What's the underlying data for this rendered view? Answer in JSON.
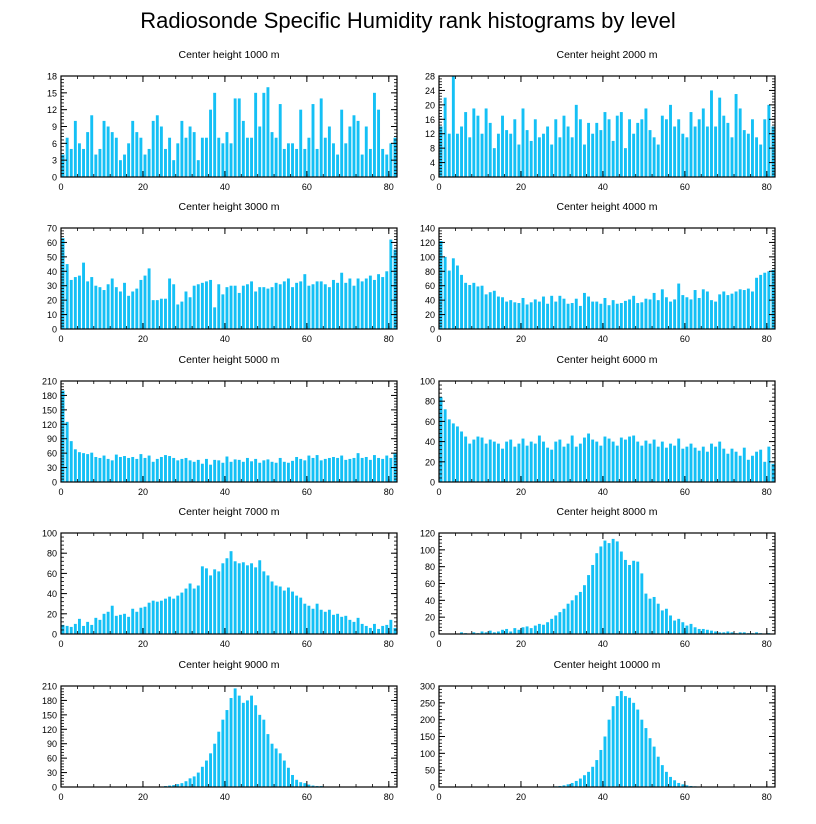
{
  "title": "Radiosonde Specific Humidity rank histograms by level",
  "bar_color": "#14c0f5",
  "chart_data": [
    {
      "type": "bar",
      "title": "Center height 1000 m",
      "x": "0..81",
      "xticks": [
        0,
        20,
        40,
        60,
        80
      ],
      "yticks": [
        0,
        3,
        6,
        9,
        12,
        15,
        18
      ],
      "ylim": [
        0,
        18
      ],
      "values": [
        4,
        7,
        5,
        10,
        6,
        5,
        8,
        11,
        4,
        5,
        10,
        9,
        8,
        7,
        3,
        4,
        6,
        10,
        8,
        7,
        4,
        5,
        10,
        11,
        9,
        5,
        7,
        3,
        6,
        10,
        7,
        9,
        8,
        3,
        7,
        7,
        12,
        15,
        7,
        6,
        8,
        6,
        14,
        14,
        10,
        7,
        7,
        15,
        9,
        15,
        16,
        8,
        7,
        13,
        5,
        6,
        6,
        5,
        12,
        5,
        7,
        13,
        5,
        14,
        7,
        9,
        6,
        4,
        12,
        6,
        9,
        11,
        10,
        4,
        9,
        5,
        15,
        12,
        5,
        4,
        6,
        7
      ]
    },
    {
      "type": "bar",
      "title": "Center height 2000 m",
      "x": "0..81",
      "xticks": [
        0,
        20,
        40,
        60,
        80
      ],
      "yticks": [
        0,
        4,
        8,
        12,
        16,
        20,
        24,
        28
      ],
      "ylim": [
        0,
        28
      ],
      "values": [
        14,
        22,
        12,
        28,
        12,
        14,
        18,
        11,
        19,
        17,
        12,
        19,
        15,
        8,
        12,
        17,
        13,
        12,
        16,
        9,
        19,
        13,
        10,
        16,
        11,
        12,
        14,
        9,
        16,
        11,
        17,
        14,
        11,
        20,
        16,
        9,
        15,
        12,
        15,
        13,
        18,
        16,
        10,
        17,
        18,
        8,
        16,
        12,
        15,
        16,
        19,
        13,
        11,
        9,
        17,
        16,
        20,
        14,
        16,
        12,
        11,
        18,
        14,
        16,
        19,
        14,
        24,
        14,
        22,
        17,
        15,
        11,
        23,
        19,
        13,
        12,
        16,
        11,
        9,
        16,
        20,
        14
      ]
    },
    {
      "type": "bar",
      "title": "Center height 3000 m",
      "x": "0..81",
      "xticks": [
        0,
        20,
        40,
        60,
        80
      ],
      "yticks": [
        0,
        10,
        20,
        30,
        40,
        50,
        60,
        70
      ],
      "ylim": [
        0,
        70
      ],
      "values": [
        63,
        45,
        34,
        36,
        37,
        46,
        33,
        36,
        30,
        29,
        27,
        31,
        35,
        29,
        26,
        32,
        23,
        26,
        28,
        34,
        37,
        42,
        20,
        20,
        21,
        21,
        35,
        31,
        17,
        19,
        26,
        22,
        30,
        31,
        32,
        33,
        34,
        15,
        31,
        24,
        29,
        30,
        30,
        25,
        30,
        31,
        33,
        26,
        29,
        29,
        28,
        29,
        32,
        31,
        33,
        35,
        29,
        32,
        33,
        38,
        30,
        31,
        33,
        33,
        31,
        29,
        34,
        32,
        39,
        32,
        35,
        30,
        35,
        33,
        35,
        37,
        34,
        38,
        36,
        40,
        62,
        55
      ]
    },
    {
      "type": "bar",
      "title": "Center height 4000 m",
      "x": "0..81",
      "xticks": [
        0,
        20,
        40,
        60,
        80
      ],
      "yticks": [
        0,
        20,
        40,
        60,
        80,
        100,
        120,
        140
      ],
      "ylim": [
        0,
        140
      ],
      "values": [
        122,
        100,
        81,
        98,
        88,
        75,
        64,
        61,
        64,
        59,
        60,
        48,
        51,
        53,
        45,
        44,
        38,
        40,
        37,
        36,
        43,
        34,
        37,
        41,
        38,
        45,
        35,
        46,
        38,
        46,
        42,
        35,
        36,
        42,
        32,
        50,
        45,
        38,
        38,
        35,
        43,
        33,
        40,
        35,
        36,
        39,
        41,
        46,
        36,
        37,
        42,
        41,
        50,
        40,
        55,
        44,
        38,
        41,
        63,
        47,
        44,
        41,
        54,
        43,
        55,
        52,
        40,
        38,
        48,
        52,
        47,
        49,
        52,
        55,
        54,
        56,
        52,
        71,
        75,
        78,
        80,
        82
      ]
    },
    {
      "type": "bar",
      "title": "Center height 5000 m",
      "x": "0..81",
      "xticks": [
        0,
        20,
        40,
        60,
        80
      ],
      "yticks": [
        0,
        30,
        60,
        90,
        120,
        150,
        180,
        210
      ],
      "ylim": [
        0,
        210
      ],
      "values": [
        190,
        125,
        85,
        68,
        62,
        60,
        58,
        61,
        52,
        50,
        55,
        48,
        45,
        57,
        52,
        54,
        50,
        52,
        48,
        58,
        50,
        55,
        42,
        48,
        52,
        56,
        54,
        50,
        45,
        48,
        50,
        45,
        42,
        46,
        38,
        48,
        36,
        46,
        45,
        40,
        53,
        42,
        47,
        46,
        42,
        50,
        43,
        48,
        40,
        45,
        47,
        42,
        40,
        50,
        42,
        40,
        44,
        52,
        48,
        45,
        55,
        50,
        56,
        45,
        48,
        50,
        52,
        50,
        55,
        46,
        48,
        50,
        60,
        50,
        52,
        46,
        56,
        50,
        48,
        55,
        50,
        60
      ]
    },
    {
      "type": "bar",
      "title": "Center height 6000 m",
      "x": "0..81",
      "xticks": [
        0,
        20,
        40,
        60,
        80
      ],
      "yticks": [
        0,
        20,
        40,
        60,
        80,
        100
      ],
      "ylim": [
        0,
        100
      ],
      "values": [
        84,
        72,
        62,
        58,
        55,
        50,
        45,
        38,
        42,
        45,
        44,
        38,
        42,
        40,
        38,
        33,
        40,
        42,
        35,
        38,
        43,
        36,
        40,
        38,
        46,
        40,
        34,
        32,
        40,
        42,
        35,
        38,
        46,
        35,
        38,
        44,
        48,
        42,
        40,
        36,
        45,
        43,
        40,
        36,
        44,
        42,
        45,
        46,
        40,
        36,
        41,
        38,
        42,
        35,
        40,
        34,
        38,
        36,
        43,
        33,
        35,
        38,
        34,
        31,
        35,
        30,
        38,
        35,
        40,
        33,
        28,
        33,
        30,
        26,
        34,
        22,
        26,
        30,
        32,
        20,
        35,
        18
      ]
    },
    {
      "type": "bar",
      "title": "Center height 7000 m",
      "x": "0..81",
      "xticks": [
        0,
        20,
        40,
        60,
        80
      ],
      "yticks": [
        0,
        20,
        40,
        60,
        80,
        100
      ],
      "ylim": [
        0,
        100
      ],
      "values": [
        9,
        8,
        7,
        10,
        15,
        8,
        12,
        9,
        16,
        14,
        20,
        22,
        28,
        18,
        19,
        20,
        17,
        25,
        22,
        26,
        27,
        31,
        33,
        32,
        33,
        35,
        37,
        35,
        38,
        41,
        45,
        50,
        45,
        48,
        67,
        65,
        58,
        64,
        62,
        70,
        75,
        82,
        72,
        70,
        71,
        68,
        70,
        66,
        73,
        62,
        58,
        52,
        48,
        47,
        43,
        46,
        42,
        38,
        36,
        30,
        28,
        25,
        30,
        24,
        22,
        24,
        19,
        20,
        17,
        18,
        14,
        12,
        16,
        10,
        8,
        6,
        10,
        5,
        8,
        9,
        14,
        6
      ]
    },
    {
      "type": "bar",
      "title": "Center height 8000 m",
      "x": "0..81",
      "xticks": [
        0,
        20,
        40,
        60,
        80
      ],
      "yticks": [
        0,
        20,
        40,
        60,
        80,
        100,
        120
      ],
      "ylim": [
        0,
        120
      ],
      "values": [
        0,
        0,
        0,
        0,
        0,
        2,
        1,
        0,
        2,
        1,
        3,
        2,
        4,
        2,
        3,
        5,
        6,
        3,
        7,
        5,
        8,
        9,
        7,
        10,
        12,
        11,
        14,
        18,
        22,
        26,
        30,
        36,
        40,
        46,
        50,
        58,
        70,
        82,
        96,
        104,
        111,
        108,
        113,
        110,
        98,
        88,
        82,
        87,
        86,
        72,
        48,
        42,
        44,
        36,
        28,
        30,
        22,
        16,
        18,
        14,
        10,
        12,
        8,
        6,
        6,
        5,
        4,
        3,
        2,
        2,
        3,
        2,
        1,
        2,
        2,
        1,
        1,
        2,
        1,
        0,
        1,
        0
      ]
    },
    {
      "type": "bar",
      "title": "Center height 9000 m",
      "x": "0..81",
      "xticks": [
        0,
        20,
        40,
        60,
        80
      ],
      "yticks": [
        0,
        30,
        60,
        90,
        120,
        150,
        180,
        210
      ],
      "ylim": [
        0,
        210
      ],
      "values": [
        0,
        0,
        0,
        0,
        0,
        0,
        0,
        0,
        0,
        0,
        0,
        0,
        0,
        0,
        0,
        0,
        0,
        0,
        0,
        0,
        0,
        0,
        0,
        0,
        1,
        2,
        3,
        4,
        6,
        8,
        12,
        18,
        22,
        30,
        42,
        55,
        70,
        90,
        115,
        140,
        160,
        185,
        205,
        190,
        175,
        180,
        190,
        170,
        150,
        140,
        110,
        90,
        80,
        70,
        55,
        40,
        25,
        15,
        10,
        8,
        5,
        3,
        2,
        2,
        1,
        1,
        1,
        0,
        0,
        0,
        0,
        0,
        0,
        0,
        0,
        0,
        0,
        0,
        0,
        0,
        0,
        0
      ]
    },
    {
      "type": "bar",
      "title": "Center height 10000 m",
      "x": "0..81",
      "xticks": [
        0,
        20,
        40,
        60,
        80
      ],
      "yticks": [
        0,
        50,
        100,
        150,
        200,
        250,
        300
      ],
      "ylim": [
        0,
        300
      ],
      "values": [
        0,
        0,
        0,
        0,
        0,
        0,
        0,
        0,
        0,
        0,
        0,
        0,
        0,
        0,
        0,
        0,
        0,
        0,
        0,
        0,
        0,
        0,
        0,
        0,
        0,
        0,
        0,
        1,
        2,
        3,
        5,
        8,
        12,
        18,
        25,
        35,
        45,
        60,
        80,
        110,
        150,
        200,
        240,
        270,
        285,
        270,
        265,
        250,
        230,
        200,
        175,
        145,
        120,
        90,
        65,
        45,
        30,
        20,
        12,
        8,
        5,
        3,
        2,
        1,
        1,
        0,
        0,
        0,
        0,
        0,
        0,
        0,
        0,
        0,
        0,
        0,
        0,
        0,
        0,
        0,
        0,
        0
      ]
    }
  ]
}
